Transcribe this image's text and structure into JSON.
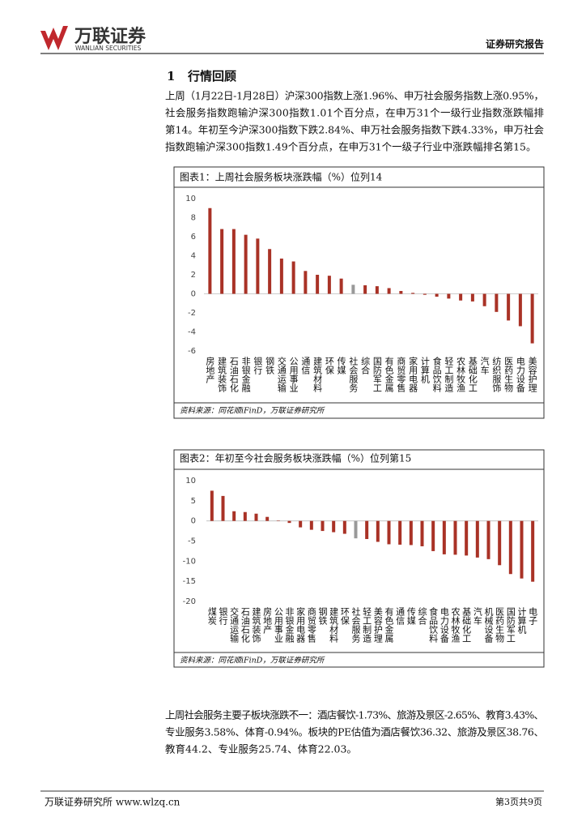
{
  "header": {
    "brand": "万联证券",
    "brand_en": "WANLIAN SECURITIES",
    "report_type": "证券研究报告"
  },
  "section": {
    "number": "1",
    "title": "行情回顾"
  },
  "paragraph1": [
    "上周（1月22日-1月28日）沪深300指数上涨1.96%、申万社会服务指数上涨0.95%，",
    "社会服务指数跑输沪深300指数1.01个百分点，在申万31个一级行业指数涨跌幅排",
    "第14。年初至今沪深300指数下跌2.84%、申万社会服务指数下跌4.33%，申万社会",
    "指数跑输沪深300指数1.49个百分点，在申万31个一级子行业中涨跌幅排名第15。"
  ],
  "chart_data": [
    {
      "type": "bar",
      "title": "图表1：上周社会服务板块涨跌幅（%）位列14",
      "categories": [
        "房地产",
        "建筑装饰",
        "石油石化",
        "非银金融",
        "银行",
        "钢铁",
        "交通运输",
        "公用事业",
        "通信",
        "建筑材料",
        "环保",
        "传媒",
        "社会服务",
        "综合",
        "国防军工",
        "有色金属",
        "商贸零售",
        "家用电器",
        "计算机",
        "食品饮料",
        "轻工制造",
        "农林牧渔",
        "基础化工",
        "汽车",
        "纺织服饰",
        "医药生物",
        "电力设备",
        "美容护理"
      ],
      "values": [
        9.0,
        6.8,
        6.8,
        6.2,
        5.8,
        4.7,
        3.7,
        3.4,
        2.4,
        2.0,
        1.9,
        1.6,
        0.95,
        0.9,
        0.8,
        0.6,
        0.3,
        0.1,
        -0.1,
        -0.3,
        -0.5,
        -0.7,
        -0.8,
        -1.3,
        -1.9,
        -2.8,
        -3.4,
        -5.2
      ],
      "colors": [
        "#a93226",
        "#a93226",
        "#a93226",
        "#a93226",
        "#a93226",
        "#a93226",
        "#a93226",
        "#a93226",
        "#a93226",
        "#a93226",
        "#a93226",
        "#a93226",
        "#999999",
        "#a93226",
        "#a93226",
        "#a93226",
        "#a93226",
        "#a93226",
        "#a93226",
        "#a93226",
        "#a93226",
        "#a93226",
        "#a93226",
        "#a93226",
        "#a93226",
        "#a93226",
        "#a93226",
        "#a93226"
      ],
      "ylim": [
        -6,
        10
      ],
      "yticks": [
        -6,
        -4,
        -2,
        0,
        2,
        4,
        6,
        8,
        10
      ],
      "source": "资料来源：同花顺iFinD，万联证券研究所"
    },
    {
      "type": "bar",
      "title": "图表2：年初至今社会服务板块涨跌幅（%）位列第15",
      "categories": [
        "煤炭",
        "银行",
        "交通运输",
        "石油石化",
        "建筑装饰",
        "房地产",
        "公用事业",
        "非银金融",
        "家用电器",
        "商贸零售",
        "钢铁",
        "建筑材料",
        "环保",
        "社会服务",
        "轻工制造",
        "美容护理",
        "有色金属",
        "通信",
        "传媒",
        "综合",
        "食品饮料",
        "电力设备",
        "农林牧渔",
        "基础化工",
        "汽车",
        "机械设备",
        "医药生物",
        "国防军工",
        "计算机",
        "电子"
      ],
      "values": [
        7.5,
        6.2,
        2.4,
        2.2,
        1.8,
        1.0,
        0.1,
        -0.5,
        -1.6,
        -2.2,
        -2.5,
        -2.8,
        -3.2,
        -4.33,
        -4.5,
        -5.2,
        -5.8,
        -5.9,
        -6.0,
        -6.3,
        -7.5,
        -8.3,
        -8.4,
        -8.6,
        -9.1,
        -9.5,
        -11.0,
        -13.2,
        -14.3,
        -15.1
      ],
      "colors": [
        "#a93226",
        "#a93226",
        "#a93226",
        "#a93226",
        "#a93226",
        "#a93226",
        "#a93226",
        "#a93226",
        "#a93226",
        "#a93226",
        "#a93226",
        "#a93226",
        "#a93226",
        "#999999",
        "#a93226",
        "#a93226",
        "#a93226",
        "#a93226",
        "#a93226",
        "#a93226",
        "#a93226",
        "#a93226",
        "#a93226",
        "#a93226",
        "#a93226",
        "#a93226",
        "#a93226",
        "#a93226",
        "#a93226",
        "#a93226"
      ],
      "ylim": [
        -20,
        10
      ],
      "yticks": [
        -20,
        -15,
        -10,
        -5,
        0,
        5,
        10
      ],
      "source": "资料来源：同花顺iFinD，万联证券研究所"
    }
  ],
  "paragraph2": [
    "上周社会服务主要子板块涨跌不一：酒店餐饮-1.73%、旅游及景区-2.65%、教育3.43%、",
    "专业服务3.58%、体育-0.94%。板块的PE估值为酒店餐饮36.32、旅游及景区38.76、",
    "教育44.2、专业服务25.74、体育22.03。"
  ],
  "footer": {
    "left": "万联证券研究所 www.wlzq.cn",
    "page": "第3页共9页"
  }
}
